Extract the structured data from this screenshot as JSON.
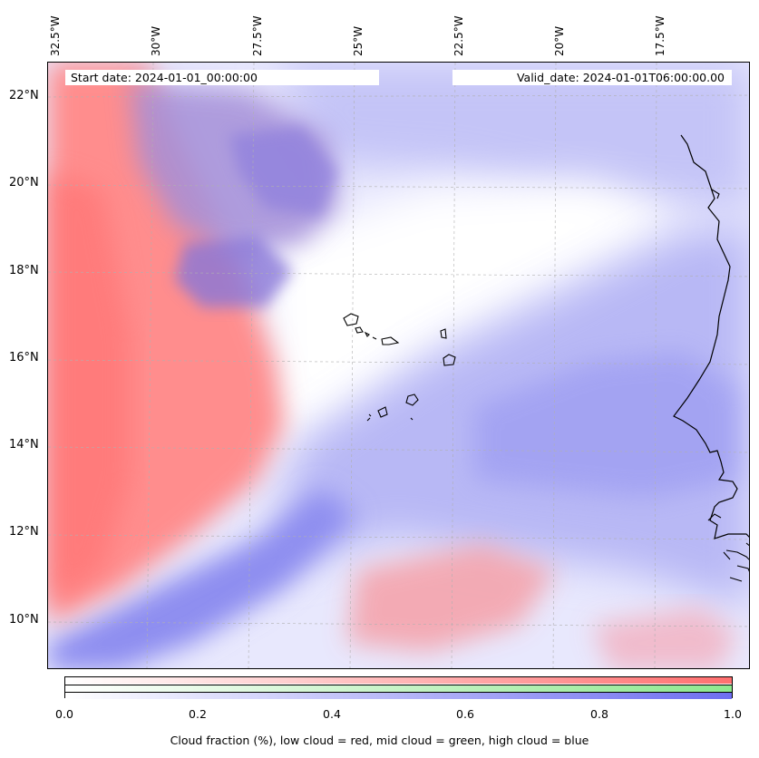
{
  "map": {
    "start_date": "Start date: 2024-01-01_00:00:00",
    "valid_date": "Valid_date: 2024-01-01T06:00:00.00",
    "lon_labels": [
      "32.5°W",
      "30°W",
      "27.5°W",
      "25°W",
      "22.5°W",
      "20°W",
      "17.5°W"
    ],
    "lat_labels": [
      "22°N",
      "20°N",
      "18°N",
      "16°N",
      "14°N",
      "12°N",
      "10°N"
    ],
    "region": "Cape Verde / West Africa coast",
    "colors": {
      "low_cloud": "#ff6f6f",
      "mid_cloud": "#8ee88e",
      "high_cloud": "#6e6ef0"
    }
  },
  "colorbar": {
    "ticks": [
      "0.0",
      "0.2",
      "0.4",
      "0.6",
      "0.8",
      "1.0"
    ],
    "label": "Cloud fraction (%), low cloud = red, mid cloud = green, high cloud = blue"
  }
}
